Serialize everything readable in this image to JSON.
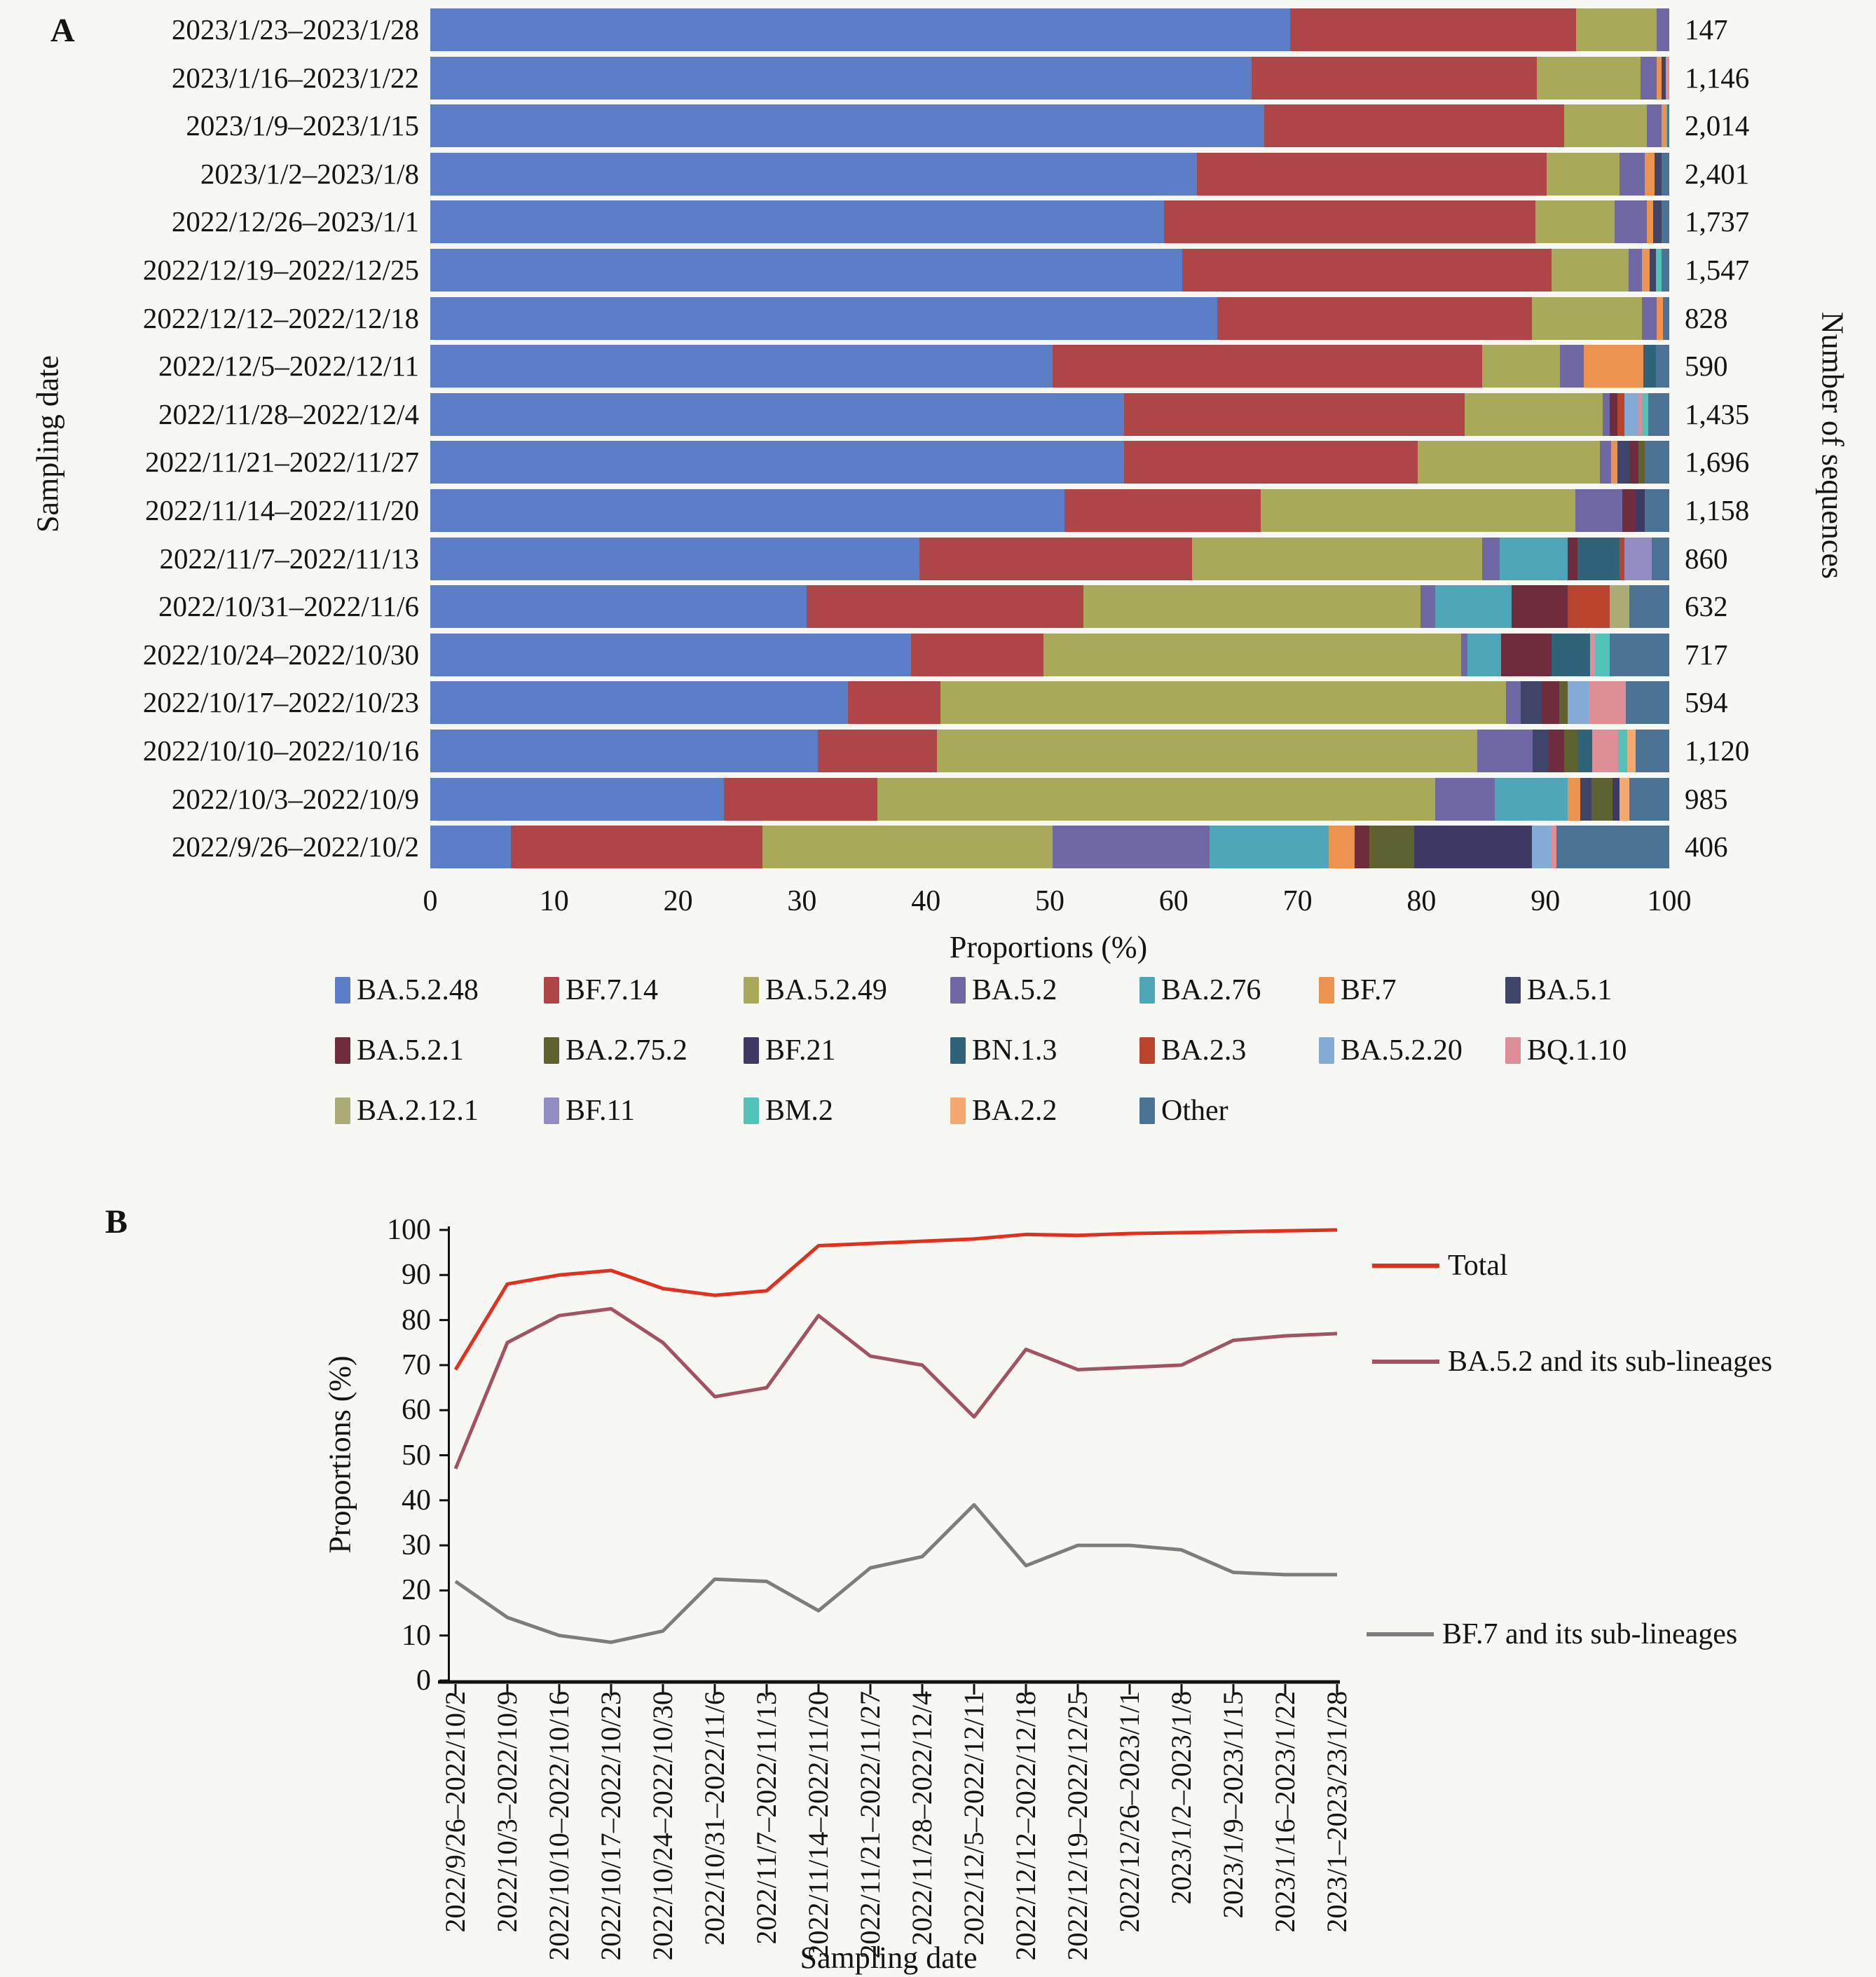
{
  "panelA": {
    "label": "A",
    "y_axis_title": "Sampling date",
    "x_axis_title": "Proportions (%)",
    "right_axis_title": "Number of sequences",
    "x_ticks": [
      0,
      10,
      20,
      30,
      40,
      50,
      60,
      70,
      80,
      90,
      100
    ]
  },
  "panelB": {
    "label": "B",
    "y_axis_title": "Proportions (%)",
    "x_axis_title": "Sampling date",
    "y_ticks": [
      0,
      10,
      20,
      30,
      40,
      50,
      60,
      70,
      80,
      90,
      100
    ]
  },
  "chart_data": [
    {
      "type": "bar",
      "stacked": true,
      "orientation": "horizontal",
      "xlabel": "Proportions (%)",
      "ylabel": "Sampling date",
      "ylabel_right": "Number of sequences",
      "xlim": [
        0,
        100
      ],
      "grid": false,
      "legend_position": "bottom",
      "categories": [
        "2023/1/23–2023/1/28",
        "2023/1/16–2023/1/22",
        "2023/1/9–2023/1/15",
        "2023/1/2–2023/1/8",
        "2022/12/26–2023/1/1",
        "2022/12/19–2022/12/25",
        "2022/12/12–2022/12/18",
        "2022/12/5–2022/12/11",
        "2022/11/28–2022/12/4",
        "2022/11/21–2022/11/27",
        "2022/11/14–2022/11/20",
        "2022/11/7–2022/11/13",
        "2022/10/31–2022/11/6",
        "2022/10/24–2022/10/30",
        "2022/10/17–2022/10/23",
        "2022/10/10–2022/10/16",
        "2022/10/3–2022/10/9",
        "2022/9/26–2022/10/2"
      ],
      "sequence_counts": [
        "147",
        "1,146",
        "2,014",
        "2,401",
        "1,737",
        "1,547",
        "828",
        "590",
        "1,435",
        "1,696",
        "1,158",
        "860",
        "632",
        "717",
        "594",
        "1,120",
        "985",
        "406"
      ],
      "lineages": [
        {
          "name": "BA.5.2.48",
          "color": "#5b7ec7"
        },
        {
          "name": "BF.7.14",
          "color": "#ae4547"
        },
        {
          "name": "BA.5.2.49",
          "color": "#a9aa59"
        },
        {
          "name": "BA.5.2",
          "color": "#6f68a5"
        },
        {
          "name": "BA.2.76",
          "color": "#4ea6b8"
        },
        {
          "name": "BF.7",
          "color": "#ec9350"
        },
        {
          "name": "BA.5.1",
          "color": "#3f4469"
        },
        {
          "name": "BA.5.2.1",
          "color": "#6e2c3c"
        },
        {
          "name": "BA.2.75.2",
          "color": "#5e6230"
        },
        {
          "name": "BF.21",
          "color": "#3f3a64"
        },
        {
          "name": "BN.1.3",
          "color": "#2f6478"
        },
        {
          "name": "BA.2.3",
          "color": "#b8442e"
        },
        {
          "name": "BA.5.2.20",
          "color": "#84abd4"
        },
        {
          "name": "BQ.1.10",
          "color": "#dd8e96"
        },
        {
          "name": "BA.2.12.1",
          "color": "#abab76"
        },
        {
          "name": "BF.11",
          "color": "#918dc2"
        },
        {
          "name": "BM.2",
          "color": "#53c3ba"
        },
        {
          "name": "BA.2.2",
          "color": "#f4a971"
        },
        {
          "name": "Other",
          "color": "#4c7396"
        }
      ],
      "rows": [
        [
          69.4,
          23.1,
          6.5,
          1.0,
          0,
          0,
          0,
          0,
          0,
          0,
          0,
          0,
          0,
          0,
          0,
          0,
          0,
          0,
          0
        ],
        [
          66.3,
          23.0,
          8.4,
          1.3,
          0,
          0.4,
          0.3,
          0,
          0,
          0,
          0,
          0,
          0,
          0.3,
          0,
          0,
          0,
          0,
          0
        ],
        [
          67.3,
          24.2,
          6.7,
          1.2,
          0,
          0.3,
          0,
          0,
          0,
          0,
          0,
          0,
          0,
          0,
          0,
          0,
          0.15,
          0,
          0.15
        ],
        [
          61.9,
          28.2,
          5.9,
          2.0,
          0,
          0.8,
          0.6,
          0,
          0,
          0,
          0,
          0,
          0,
          0,
          0,
          0,
          0,
          0,
          0.6
        ],
        [
          59.2,
          30.0,
          6.4,
          2.6,
          0,
          0.5,
          0.7,
          0,
          0,
          0,
          0,
          0,
          0,
          0,
          0,
          0,
          0,
          0,
          0.6
        ],
        [
          60.7,
          29.8,
          6.2,
          1.1,
          0,
          0.6,
          0.5,
          0,
          0,
          0,
          0,
          0,
          0,
          0,
          0,
          0,
          0.5,
          0,
          0.6
        ],
        [
          63.5,
          25.4,
          8.9,
          1.2,
          0,
          0.5,
          0,
          0,
          0,
          0,
          0,
          0,
          0,
          0,
          0,
          0,
          0,
          0,
          0.5
        ],
        [
          50.2,
          34.7,
          6.3,
          1.9,
          0,
          4.8,
          0,
          0,
          0,
          0,
          1.0,
          0,
          0,
          0,
          0,
          0,
          0,
          0,
          1.1
        ],
        [
          56.0,
          27.5,
          11.1,
          0.6,
          0,
          0,
          0,
          0.6,
          0,
          0,
          0,
          0.6,
          1.1,
          0.3,
          0,
          0,
          0.5,
          0,
          1.7
        ],
        [
          56.0,
          23.7,
          14.7,
          0.9,
          0,
          0.5,
          1.0,
          0.7,
          0.5,
          0,
          0,
          0,
          0,
          0,
          0,
          0,
          0,
          0,
          2.0
        ],
        [
          51.2,
          15.8,
          25.4,
          3.8,
          0,
          0,
          0,
          1.1,
          0,
          0.7,
          0,
          0,
          0,
          0,
          0,
          0,
          0,
          0,
          2.0
        ],
        [
          39.5,
          22.0,
          23.4,
          1.4,
          5.5,
          0,
          0,
          0.8,
          0,
          0,
          3.4,
          0.4,
          0,
          0,
          0,
          2.2,
          0,
          0,
          1.4
        ],
        [
          30.4,
          22.3,
          27.2,
          1.2,
          6.2,
          0,
          0,
          4.5,
          0,
          0,
          0,
          3.4,
          0,
          0,
          1.6,
          0,
          0,
          0,
          3.2
        ],
        [
          38.8,
          10.7,
          33.7,
          0.5,
          2.7,
          0,
          0,
          4.1,
          0,
          0,
          3.1,
          0,
          0,
          0.4,
          0,
          0,
          1.2,
          0,
          4.8
        ],
        [
          33.7,
          7.5,
          45.6,
          1.2,
          0,
          0,
          1.7,
          1.4,
          0.7,
          0,
          0,
          0,
          1.7,
          3.0,
          0,
          0,
          0,
          0,
          3.5
        ],
        [
          31.3,
          9.6,
          43.6,
          4.5,
          0,
          0,
          1.3,
          1.2,
          1.1,
          0,
          1.2,
          0,
          0,
          2.1,
          0,
          0,
          0.7,
          0.7,
          2.7
        ],
        [
          23.7,
          12.4,
          45.0,
          4.8,
          5.9,
          1.0,
          0.9,
          0,
          1.7,
          0.6,
          0,
          0,
          0,
          0,
          0,
          0,
          0,
          0.8,
          3.2
        ],
        [
          6.5,
          20.3,
          23.4,
          12.7,
          9.6,
          2.1,
          0,
          1.2,
          3.6,
          9.5,
          0,
          0,
          1.6,
          0.4,
          0,
          0,
          0,
          0,
          9.1
        ]
      ]
    },
    {
      "type": "line",
      "xlabel": "Sampling date",
      "ylabel": "Proportions (%)",
      "ylim": [
        0,
        100
      ],
      "grid": false,
      "legend_position": "right",
      "x_categories": [
        "2022/9/26–2022/10/2",
        "2022/10/3–2022/10/9",
        "2022/10/10–2022/10/16",
        "2022/10/17–2022/10/23",
        "2022/10/24–2022/10/30",
        "2022/10/31–2022/11/6",
        "2022/11/7–2022/11/13",
        "2022/11/14–2022/11/20",
        "2022/11/21–2022/11/27",
        "2022/11/28–2022/12/4",
        "2022/12/5–2022/12/11",
        "2022/12/12–2022/12/18",
        "2022/12/19–2022/12/25",
        "2022/12/26–2023/1/1",
        "2023/1/2–2023/1/8",
        "2023/1/9–2023/1/15",
        "2023/1/16–2023/1/22",
        "2023/1–2023/23/1/28"
      ],
      "series": [
        {
          "name": "Total",
          "color": "#e0301e",
          "values": [
            69,
            88,
            90,
            91,
            87,
            85.5,
            86.5,
            96.5,
            97,
            97.5,
            98,
            99,
            98.8,
            99.2,
            99.4,
            99.6,
            99.8,
            100
          ]
        },
        {
          "name": "BA.5.2 and its sub-lineages",
          "color": "#a25260",
          "values": [
            47,
            75,
            81,
            82.5,
            75,
            63,
            65,
            81,
            72,
            70,
            58.5,
            73.5,
            69,
            69.5,
            70,
            75.5,
            76.5,
            77
          ]
        },
        {
          "name": "BF.7 and its sub-lineages",
          "color": "#7d7d7d",
          "values": [
            22,
            14,
            10,
            8.5,
            11,
            22.5,
            22,
            15.5,
            25,
            27.5,
            39,
            25.5,
            30,
            30,
            29,
            24,
            23.5,
            23.5
          ]
        }
      ]
    }
  ]
}
